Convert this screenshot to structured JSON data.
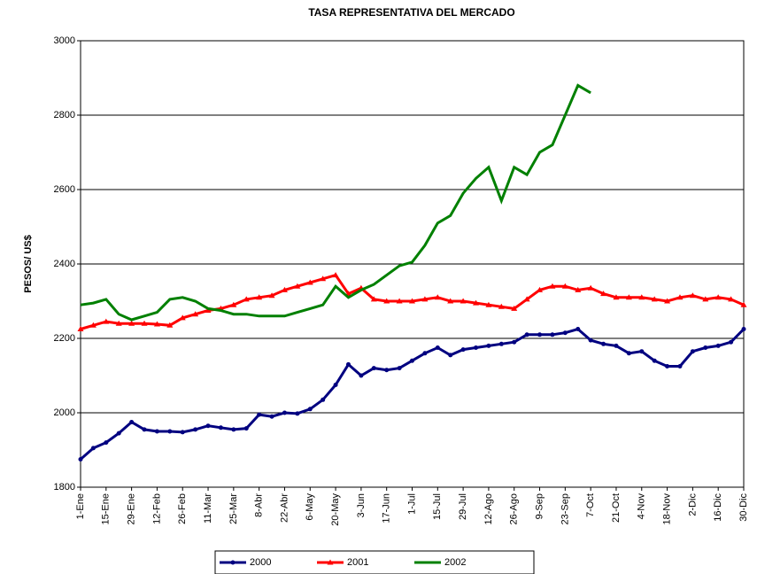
{
  "chart_data": {
    "type": "line",
    "title": "TASA REPRESENTATIVA DEL MERCADO",
    "y_label": "PESOS/ US$",
    "categories": [
      "1-Ene",
      null,
      "15-Ene",
      null,
      "29-Ene",
      null,
      "12-Feb",
      null,
      "26-Feb",
      null,
      "11-Mar",
      null,
      "25-Mar",
      null,
      "8-Abr",
      null,
      "22-Abr",
      null,
      "6-May",
      null,
      "20-May",
      null,
      "3-Jun",
      null,
      "17-Jun",
      null,
      "1-Jul",
      null,
      "15-Jul",
      null,
      "29-Jul",
      null,
      "12-Ago",
      null,
      "26-Ago",
      null,
      "9-Sep",
      null,
      "23-Sep",
      null,
      "7-Oct",
      null,
      "21-Oct",
      null,
      "4-Nov",
      null,
      "18-Nov",
      null,
      "2-Dic",
      null,
      "16-Dic",
      null,
      "30-Dic"
    ],
    "series": [
      {
        "name": "2000",
        "color": "#000080",
        "marker": "circle",
        "values": [
          1875,
          1905,
          1920,
          1945,
          1975,
          1955,
          1950,
          1950,
          1948,
          1955,
          1965,
          1960,
          1955,
          1958,
          1995,
          1990,
          2000,
          1998,
          2010,
          2035,
          2075,
          2130,
          2100,
          2120,
          2115,
          2120,
          2140,
          2160,
          2175,
          2155,
          2170,
          2175,
          2180,
          2185,
          2190,
          2210,
          2210,
          2210,
          2215,
          2225,
          2195,
          2185,
          2180,
          2160,
          2165,
          2140,
          2125,
          2125,
          2165,
          2175,
          2180,
          2190,
          2225
        ]
      },
      {
        "name": "2001",
        "color": "#ff0000",
        "marker": "triangle",
        "values": [
          2225,
          2235,
          2245,
          2240,
          2240,
          2240,
          2238,
          2235,
          2255,
          2265,
          2275,
          2280,
          2290,
          2305,
          2310,
          2315,
          2330,
          2340,
          2350,
          2360,
          2370,
          2320,
          2335,
          2305,
          2300,
          2300,
          2300,
          2305,
          2310,
          2300,
          2300,
          2295,
          2290,
          2285,
          2280,
          2305,
          2330,
          2340,
          2340,
          2330,
          2335,
          2320,
          2310,
          2310,
          2310,
          2305,
          2300,
          2310,
          2315,
          2305,
          2310,
          2305,
          2290
        ]
      },
      {
        "name": "2002",
        "color": "#008000",
        "marker": "none",
        "values": [
          2290,
          2295,
          2305,
          2265,
          2250,
          2260,
          2270,
          2305,
          2310,
          2300,
          2280,
          2275,
          2265,
          2265,
          2260,
          2260,
          2260,
          2270,
          2280,
          2290,
          2340,
          2310,
          2330,
          2345,
          2370,
          2395,
          2405,
          2450,
          2510,
          2530,
          2590,
          2630,
          2660,
          2570,
          2660,
          2640,
          2700,
          2720,
          2800,
          2880,
          2860,
          null,
          null,
          null,
          null,
          null,
          null,
          null,
          null,
          null,
          null,
          null,
          null
        ]
      }
    ],
    "ylim": [
      1800,
      3000
    ],
    "yticks": [
      1800,
      2000,
      2200,
      2400,
      2600,
      2800,
      3000
    ],
    "grid": true,
    "legend": "bottom"
  }
}
